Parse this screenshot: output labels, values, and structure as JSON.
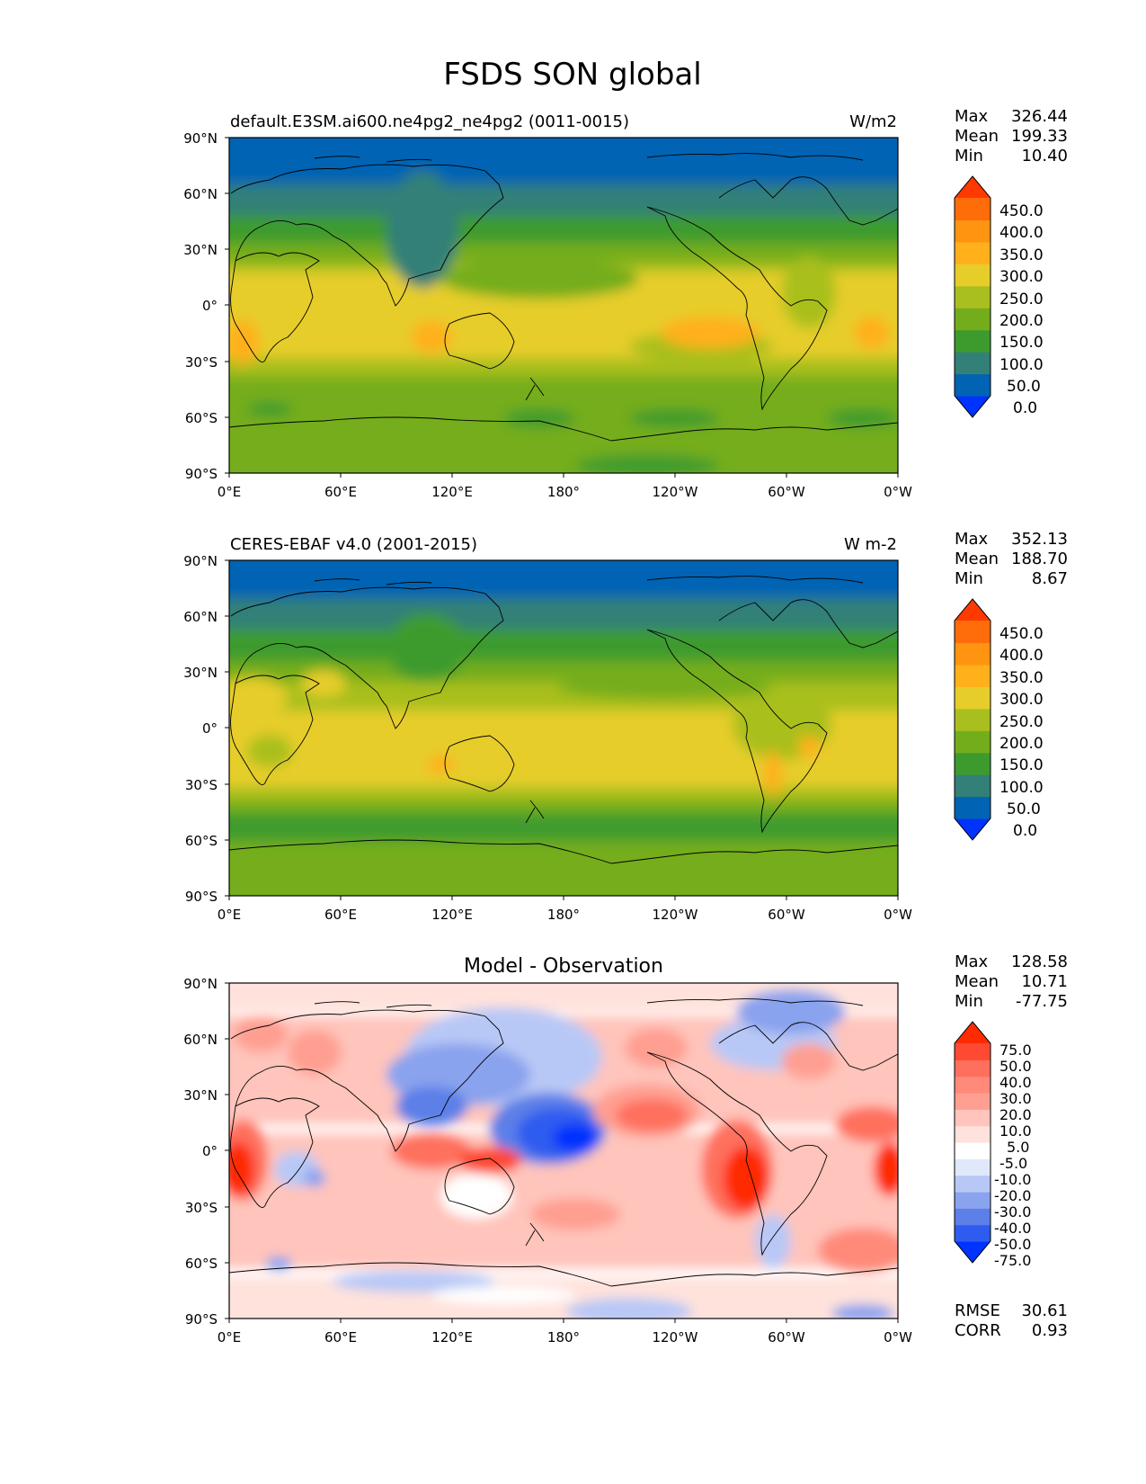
{
  "figure": {
    "title": "FSDS SON global"
  },
  "colors": {
    "field": [
      "#0033ff",
      "#0063b3",
      "#338078",
      "#3d9b2e",
      "#74ad1c",
      "#a9bf1f",
      "#e6cd2a",
      "#ffb01a",
      "#ff9410",
      "#ff6c0a",
      "#ff3a00"
    ],
    "diff": [
      "#0033ff",
      "#2e5cf0",
      "#5c7fe8",
      "#8aa3ee",
      "#b8c8f6",
      "#e0e8fb",
      "#ffffff",
      "#ffe2dc",
      "#ffc4bb",
      "#ff9f91",
      "#ff8a79",
      "#ff6f5d",
      "#ff4a33",
      "#ff2b00"
    ]
  },
  "axes": {
    "lat_ticks": [
      "90°N",
      "60°N",
      "30°N",
      "0°",
      "30°S",
      "60°S",
      "90°S"
    ],
    "lon_ticks": [
      "0°E",
      "60°E",
      "120°E",
      "180°",
      "120°W",
      "60°W",
      "0°W"
    ]
  },
  "panels": [
    {
      "left_title": "default.E3SM.ai600.ne4pg2_ne4pg2 (0011-0015)",
      "center_title": "",
      "right_title": "W/m2",
      "stats": {
        "max_label": "Max",
        "max": "326.44",
        "mean_label": "Mean",
        "mean": "199.33",
        "min_label": "Min",
        "min": "10.40"
      },
      "colorbar_labels": [
        "450.0",
        "400.0",
        "350.0",
        "300.0",
        "250.0",
        "200.0",
        "150.0",
        "100.0",
        "50.0",
        "0.0"
      ]
    },
    {
      "left_title": "CERES-EBAF v4.0 (2001-2015)",
      "center_title": "",
      "right_title": "W m-2",
      "stats": {
        "max_label": "Max",
        "max": "352.13",
        "mean_label": "Mean",
        "mean": "188.70",
        "min_label": "Min",
        "min": "8.67"
      },
      "colorbar_labels": [
        "450.0",
        "400.0",
        "350.0",
        "300.0",
        "250.0",
        "200.0",
        "150.0",
        "100.0",
        "50.0",
        "0.0"
      ]
    },
    {
      "left_title": "",
      "center_title": "Model - Observation",
      "right_title": "",
      "stats": {
        "max_label": "Max",
        "max": "128.58",
        "mean_label": "Mean",
        "mean": "10.71",
        "min_label": "Min",
        "min": "-77.75"
      },
      "colorbar_labels": [
        "75.0",
        "50.0",
        "40.0",
        "30.0",
        "20.0",
        "10.0",
        "5.0",
        "-5.0",
        "-10.0",
        "-20.0",
        "-30.0",
        "-40.0",
        "-50.0",
        "-75.0"
      ],
      "metrics": {
        "rmse_label": "RMSE",
        "rmse": "30.61",
        "corr_label": "CORR",
        "corr": "0.93"
      }
    }
  ],
  "chart_data": [
    {
      "type": "heatmap",
      "title": "default.E3SM.ai600.ne4pg2_ne4pg2 (0011-0015)",
      "units": "W/m2",
      "x_range": [
        0,
        360
      ],
      "y_range": [
        -90,
        90
      ],
      "levels": [
        0,
        50,
        100,
        150,
        200,
        250,
        300,
        350,
        400,
        450
      ],
      "zonal_profile": [
        {
          "lat": 90,
          "value": 40
        },
        {
          "lat": 75,
          "value": 45
        },
        {
          "lat": 62,
          "value": 95
        },
        {
          "lat": 50,
          "value": 130
        },
        {
          "lat": 40,
          "value": 175
        },
        {
          "lat": 30,
          "value": 225
        },
        {
          "lat": 20,
          "value": 250
        },
        {
          "lat": 10,
          "value": 255
        },
        {
          "lat": 0,
          "value": 255
        },
        {
          "lat": -15,
          "value": 260
        },
        {
          "lat": -30,
          "value": 240
        },
        {
          "lat": -40,
          "value": 180
        },
        {
          "lat": -50,
          "value": 160
        },
        {
          "lat": -60,
          "value": 165
        },
        {
          "lat": -75,
          "value": 170
        },
        {
          "lat": -90,
          "value": 170
        }
      ],
      "stats": {
        "max": 326.44,
        "mean": 199.33,
        "min": 10.4
      }
    },
    {
      "type": "heatmap",
      "title": "CERES-EBAF v4.0 (2001-2015)",
      "units": "W m-2",
      "x_range": [
        0,
        360
      ],
      "y_range": [
        -90,
        90
      ],
      "levels": [
        0,
        50,
        100,
        150,
        200,
        250,
        300,
        350,
        400,
        450
      ],
      "zonal_profile": [
        {
          "lat": 90,
          "value": 35
        },
        {
          "lat": 75,
          "value": 45
        },
        {
          "lat": 62,
          "value": 85
        },
        {
          "lat": 50,
          "value": 125
        },
        {
          "lat": 40,
          "value": 160
        },
        {
          "lat": 30,
          "value": 210
        },
        {
          "lat": 20,
          "value": 240
        },
        {
          "lat": 10,
          "value": 225
        },
        {
          "lat": 0,
          "value": 235
        },
        {
          "lat": -15,
          "value": 260
        },
        {
          "lat": -30,
          "value": 235
        },
        {
          "lat": -40,
          "value": 170
        },
        {
          "lat": -50,
          "value": 130
        },
        {
          "lat": -60,
          "value": 150
        },
        {
          "lat": -75,
          "value": 165
        },
        {
          "lat": -90,
          "value": 170
        }
      ],
      "stats": {
        "max": 352.13,
        "mean": 188.7,
        "min": 8.67
      }
    },
    {
      "type": "heatmap",
      "title": "Model - Observation",
      "units": "",
      "x_range": [
        0,
        360
      ],
      "y_range": [
        -90,
        90
      ],
      "levels": [
        -75,
        -50,
        -40,
        -30,
        -20,
        -10,
        -5,
        5,
        10,
        20,
        30,
        40,
        50,
        75
      ],
      "features": [
        {
          "lon": 140,
          "lat": 25,
          "value": -45
        },
        {
          "lon": 175,
          "lat": 8,
          "value": -70
        },
        {
          "lon": 225,
          "lat": 15,
          "value": 55
        },
        {
          "lon": 280,
          "lat": -15,
          "value": 75
        },
        {
          "lon": 5,
          "lat": -10,
          "value": 70
        },
        {
          "lon": 350,
          "lat": 8,
          "value": 55
        },
        {
          "lon": 110,
          "lat": -5,
          "value": 45
        },
        {
          "lon": 150,
          "lat": -5,
          "value": 45
        },
        {
          "lon": 45,
          "lat": -15,
          "value": -25
        },
        {
          "lon": 170,
          "lat": -63,
          "value": -25
        },
        {
          "lon": 295,
          "lat": -40,
          "value": -30
        }
      ],
      "stats": {
        "max": 128.58,
        "mean": 10.71,
        "min": -77.75,
        "rmse": 30.61,
        "corr": 0.93
      }
    }
  ]
}
